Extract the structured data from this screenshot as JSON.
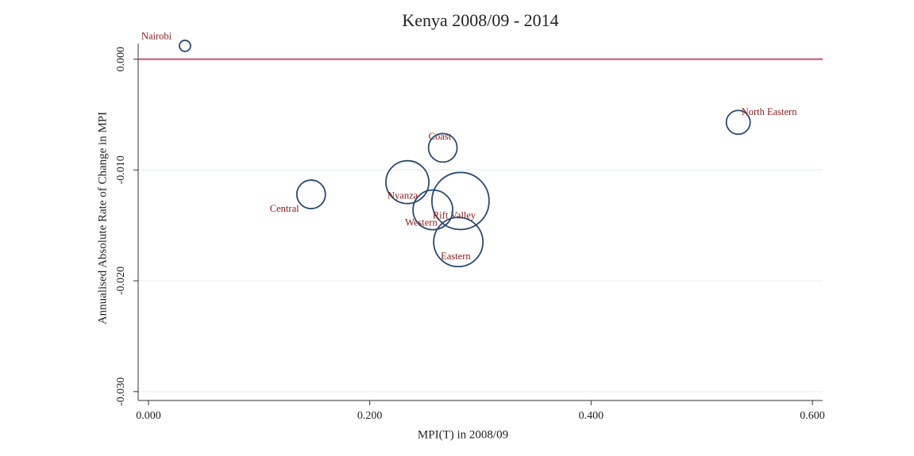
{
  "chart_data": {
    "type": "scatter",
    "title": "Kenya 2008/09 - 2014",
    "x_label": "MPI(T) in 2008/09",
    "y_label": "Annualised Absolute Rate of Change in MPI",
    "labels": [
      "Nairobi",
      "North Eastern",
      "Coast",
      "Nyanza",
      "Central",
      "Rift Valley",
      "Western",
      "Eastern"
    ],
    "x": [
      0.033,
      0.533,
      0.266,
      0.234,
      0.147,
      0.282,
      0.257,
      0.28
    ],
    "values": [
      0.0012,
      -0.0057,
      -0.008,
      -0.0111,
      -0.0122,
      -0.0128,
      -0.0136,
      -0.0165
    ],
    "sizes": [
      49,
      225,
      324,
      729,
      324,
      1296,
      625,
      961
    ],
    "color": "#2c4a6e",
    "label_color": "#8b1a1a",
    "reference_line": {
      "value": 0,
      "color": "#c8506e"
    },
    "xlim": [
      -0.0093,
      0.6093
    ],
    "ylim": [
      -0.0308,
      0.0014
    ],
    "xticks": [
      {
        "value": 0,
        "label": "0.000"
      },
      {
        "value": 0.2,
        "label": "0.200"
      },
      {
        "value": 0.4,
        "label": "0.400"
      },
      {
        "value": 0.6,
        "label": "0.600"
      }
    ],
    "yticks": [
      {
        "value": 0,
        "label": "0.000"
      },
      {
        "value": -0.01,
        "label": "-0.010"
      },
      {
        "value": -0.02,
        "label": "-0.020"
      },
      {
        "value": -0.03,
        "label": "-0.030"
      }
    ],
    "grid": true
  }
}
